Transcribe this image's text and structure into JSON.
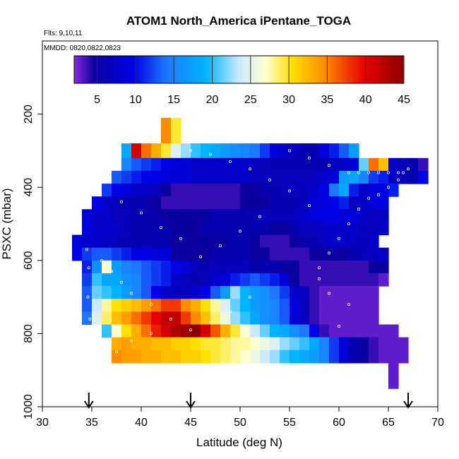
{
  "chart_data": {
    "type": "heatmap",
    "title": "ATOM1 North_America iPentane_TOGA",
    "annotations": [
      "Flts: 9,10,11",
      "MMDD: 0820,0822,0823"
    ],
    "xlabel": "Latitude (deg N)",
    "ylabel": "PSXC (mbar)",
    "xlim": [
      30,
      70
    ],
    "ylim": [
      1000,
      0
    ],
    "x_ticks": [
      "30",
      "35",
      "40",
      "45",
      "50",
      "55",
      "60",
      "65",
      "70"
    ],
    "y_ticks": [
      "200",
      "400",
      "600",
      "800",
      "1000"
    ],
    "x_tick_values": [
      30,
      35,
      40,
      45,
      50,
      55,
      60,
      65,
      70
    ],
    "y_tick_values": [
      200,
      400,
      600,
      800,
      1000
    ],
    "colorbar": {
      "range": [
        2,
        45
      ],
      "tick_labels": [
        "5",
        "10",
        "15",
        "20",
        "25",
        "30",
        "35",
        "40",
        "45"
      ],
      "tick_values": [
        5,
        10,
        15,
        20,
        25,
        30,
        35,
        40,
        45
      ]
    },
    "arrow_latitudes": [
      34.7,
      45,
      67
    ],
    "cell_width_deg": 1,
    "cell_height_mbar": 35,
    "rows": [
      {
        "p": 210,
        "x0": 42,
        "values": [
          35,
          29
        ]
      },
      {
        "p": 245,
        "x0": 42,
        "values": [
          35,
          29
        ]
      },
      {
        "p": 280,
        "x0": 38,
        "values": [
          18,
          41,
          36,
          33,
          29,
          24,
          22,
          20,
          19,
          18,
          17,
          16,
          15,
          14,
          12,
          9,
          8,
          7,
          6,
          6,
          9,
          11,
          13,
          17
        ]
      },
      {
        "p": 315,
        "x0": 38,
        "values": [
          18,
          41,
          36,
          33,
          29,
          24,
          22,
          20,
          19,
          18,
          17,
          16,
          15,
          14,
          12,
          9,
          8,
          7,
          6,
          6,
          9,
          11,
          13,
          17
        ]
      },
      {
        "p": 320,
        "x0": 38,
        "values": [
          15,
          13,
          12,
          11,
          10,
          9,
          9,
          8,
          8,
          8,
          8,
          8,
          8,
          7,
          7,
          6,
          6,
          6,
          6,
          6,
          6,
          7,
          8,
          9,
          21,
          36,
          32,
          8,
          7,
          6,
          4
        ]
      },
      {
        "p": 355,
        "x0": 37,
        "values": [
          13,
          12,
          11,
          10,
          10,
          9,
          9,
          9,
          8,
          8,
          8,
          8,
          8,
          8,
          7,
          7,
          7,
          7,
          7,
          7,
          7,
          8,
          9,
          17,
          18,
          15,
          12,
          11,
          8,
          7,
          6,
          10
        ]
      },
      {
        "p": 390,
        "x0": 36,
        "values": [
          12,
          10,
          9,
          8,
          8,
          7,
          5,
          4,
          4,
          4,
          4,
          4,
          4,
          4,
          5,
          5,
          6,
          6,
          7,
          7,
          7,
          8,
          10,
          14,
          18,
          11,
          8,
          9,
          10,
          11
        ]
      },
      {
        "p": 425,
        "x0": 35,
        "values": [
          10,
          8,
          7,
          6,
          6,
          6,
          5,
          4,
          4,
          4,
          4,
          4,
          4,
          4,
          4,
          5,
          5,
          5,
          6,
          6,
          6,
          7,
          9,
          9,
          10,
          11,
          7,
          8,
          9,
          10
        ]
      },
      {
        "p": 460,
        "x0": 34,
        "values": [
          9,
          8,
          8,
          7,
          7,
          6,
          6,
          6,
          5,
          5,
          5,
          5,
          5,
          6,
          6,
          6,
          6,
          6,
          7,
          7,
          7,
          7,
          8,
          9,
          10,
          10,
          9,
          9,
          8,
          7,
          7
        ]
      },
      {
        "p": 495,
        "x0": 34,
        "values": [
          9,
          8,
          8,
          8,
          7,
          6,
          6,
          6,
          6,
          5,
          5,
          5,
          6,
          6,
          6,
          6,
          6,
          6,
          6,
          5,
          5,
          6,
          7,
          7,
          8,
          8,
          8,
          8,
          7,
          7,
          8
        ]
      },
      {
        "p": 530,
        "x0": 33,
        "values": [
          9,
          8,
          8,
          8,
          7,
          6,
          6,
          6,
          6,
          6,
          5,
          5,
          5,
          5,
          5,
          5,
          6,
          6,
          5,
          4,
          4,
          4,
          5,
          6,
          6,
          7,
          8,
          8,
          7,
          7,
          8
        ]
      },
      {
        "p": 565,
        "x0": 33,
        "values": [
          10,
          12,
          13,
          13,
          12,
          11,
          10,
          10,
          9,
          9,
          5,
          5,
          5,
          5,
          6,
          6,
          6,
          6,
          5,
          5,
          4,
          4,
          4,
          4,
          5,
          5,
          5,
          5,
          6,
          7,
          7,
          8
        ]
      },
      {
        "p": 600,
        "x0": 34,
        "values": [
          11,
          16,
          26,
          17,
          15,
          14,
          13,
          12,
          11,
          10,
          9,
          7,
          6,
          7,
          7,
          7,
          7,
          6,
          6,
          6,
          5,
          5,
          4,
          4,
          4,
          4,
          4,
          4,
          4,
          5,
          5
        ]
      },
      {
        "p": 635,
        "x0": 34,
        "values": [
          12,
          20,
          18,
          18,
          16,
          15,
          13,
          12,
          11,
          8,
          7,
          6,
          7,
          8,
          9,
          11,
          12,
          13,
          12,
          11,
          9,
          5,
          4,
          4,
          4,
          4,
          4,
          4,
          4,
          4,
          3
        ]
      },
      {
        "p": 670,
        "x0": 34,
        "values": [
          13,
          21,
          20,
          19,
          17,
          15,
          13,
          10,
          8,
          7,
          7,
          8,
          10,
          13,
          17,
          22,
          19,
          17,
          16,
          14,
          12,
          8,
          7,
          4,
          3,
          3,
          3,
          3,
          3,
          3
        ]
      },
      {
        "p": 705,
        "x0": 34,
        "values": [
          13,
          23,
          27,
          30,
          31,
          32,
          34,
          36,
          38,
          38,
          35,
          33,
          30,
          27,
          24,
          21,
          19,
          17,
          16,
          15,
          13,
          9,
          7,
          4,
          3,
          3,
          3,
          3,
          3,
          3
        ]
      },
      {
        "p": 740,
        "x0": 34,
        "values": [
          14,
          24,
          28,
          32,
          34,
          36,
          38,
          40,
          42,
          42,
          38,
          35,
          32,
          28,
          25,
          22,
          20,
          18,
          16,
          15,
          13,
          9,
          7,
          4,
          3,
          3,
          3,
          3,
          3,
          3
        ]
      },
      {
        "p": 775,
        "x0": 36,
        "values": [
          20,
          26,
          30,
          33,
          36,
          39,
          41,
          43,
          44,
          45,
          41,
          37,
          33,
          29,
          26,
          23,
          21,
          19,
          18,
          16,
          14,
          10,
          4,
          3,
          3,
          3,
          3,
          3,
          3,
          3
        ]
      },
      {
        "p": 810,
        "x0": 37,
        "values": [
          33,
          34,
          33,
          33,
          32,
          32,
          31,
          31,
          30,
          29,
          29,
          28,
          27,
          27,
          26,
          25,
          24,
          22,
          21,
          20,
          18,
          15,
          12,
          9,
          6,
          5,
          4,
          3,
          3,
          3
        ]
      },
      {
        "p": 845,
        "x0": 37,
        "values": [
          35,
          34,
          34,
          33,
          33,
          32,
          32,
          31,
          31,
          30,
          29,
          28,
          27,
          26,
          25,
          23,
          22,
          20,
          19,
          18,
          17,
          15,
          12,
          9,
          6,
          5,
          4,
          3,
          3,
          3
        ]
      },
      {
        "p": 880,
        "x0": 65,
        "values": [
          3
        ]
      },
      {
        "p": 915,
        "x0": 65,
        "values": [
          3
        ]
      }
    ]
  }
}
